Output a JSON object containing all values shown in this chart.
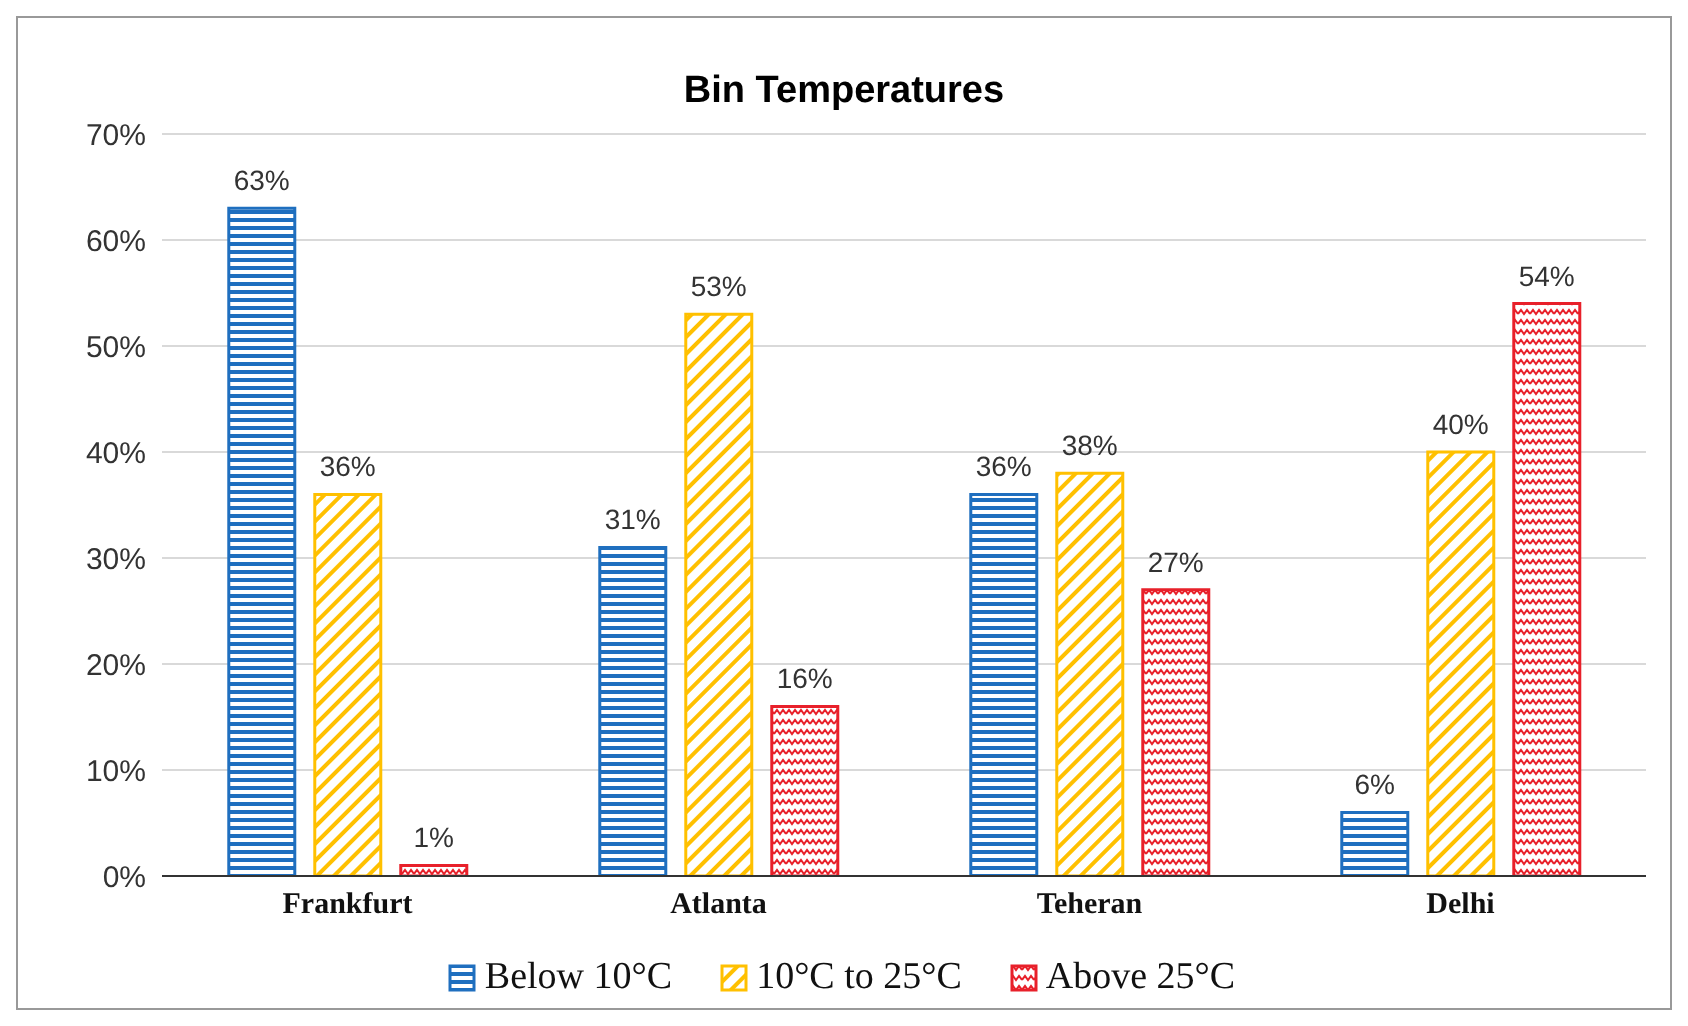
{
  "chart_data": {
    "type": "bar",
    "title": "Bin Temperatures",
    "categories": [
      "Frankfurt",
      "Atlanta",
      "Teheran",
      "Delhi"
    ],
    "series": [
      {
        "name": "Below 10°C",
        "color": "#1f6fbf",
        "values": [
          63,
          31,
          36,
          6
        ],
        "value_labels": [
          "63%",
          "31%",
          "36%",
          "6%"
        ]
      },
      {
        "name": "10°C to 25°C",
        "color": "#ffc000",
        "values": [
          36,
          53,
          38,
          40
        ],
        "value_labels": [
          "36%",
          "53%",
          "38%",
          "40%"
        ]
      },
      {
        "name": "Above 25°C",
        "color": "#e8202a",
        "values": [
          1,
          16,
          27,
          54
        ],
        "value_labels": [
          "1%",
          "16%",
          "27%",
          "54%"
        ]
      }
    ],
    "ylim": [
      0,
      70
    ],
    "yticks": [
      {
        "value": 0,
        "label": "0%"
      },
      {
        "value": 10,
        "label": "10%"
      },
      {
        "value": 20,
        "label": "20%"
      },
      {
        "value": 30,
        "label": "30%"
      },
      {
        "value": 40,
        "label": "40%"
      },
      {
        "value": 50,
        "label": "50%"
      },
      {
        "value": 60,
        "label": "60%"
      },
      {
        "value": 70,
        "label": "70%"
      }
    ],
    "grid": "y",
    "legend": "bottom"
  }
}
